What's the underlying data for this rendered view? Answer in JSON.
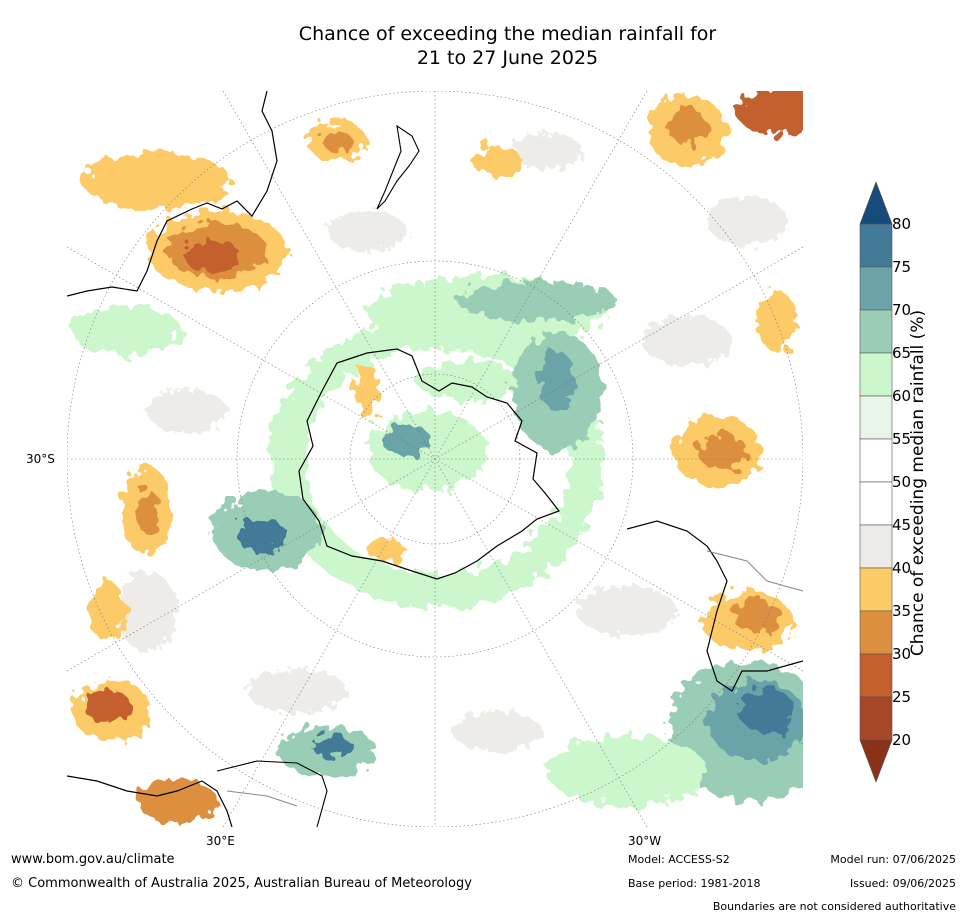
{
  "title": {
    "line1": "Chance of exceeding the median rainfall for",
    "line2": "21 to 27 June 2025"
  },
  "map": {
    "label_left": "30°S",
    "label_bottom_left": "30°E",
    "label_bottom_right": "30°W",
    "projection": "south polar stereographic",
    "land_outline_color": "#000000",
    "boundary_color": "#888888"
  },
  "colorbar": {
    "title": "Chance of exceeding median rainfall (%)",
    "ticks": [
      "80",
      "75",
      "70",
      "65",
      "60",
      "55",
      "50",
      "45",
      "40",
      "35",
      "30",
      "25",
      "20"
    ],
    "bands": [
      {
        "range": "<20",
        "color": "#8a3218"
      },
      {
        "range": "20-25",
        "color": "#a64828"
      },
      {
        "range": "25-30",
        "color": "#c4602e"
      },
      {
        "range": "30-35",
        "color": "#dd8f40"
      },
      {
        "range": "35-40",
        "color": "#fccb67"
      },
      {
        "range": "40-45",
        "color": "#ecebe7"
      },
      {
        "range": "45-50",
        "color": "#ffffff"
      },
      {
        "range": "50-55",
        "color": "#ffffff"
      },
      {
        "range": "55-60",
        "color": "#e9f5e9"
      },
      {
        "range": "60-65",
        "color": "#ccf7cc"
      },
      {
        "range": "65-70",
        "color": "#9acdb5"
      },
      {
        "range": "70-75",
        "color": "#6ba3a8"
      },
      {
        "range": "75-80",
        "color": "#427a97"
      },
      {
        "range": ">80",
        "color": "#164b7c"
      }
    ]
  },
  "footer": {
    "website": "www.bom.gov.au/climate",
    "copyright": "© Commonwealth of Australia 2025, Australian Bureau of Meteorology",
    "model": "Model: ACCESS-S2",
    "base_period": "Base period: 1981-2018",
    "model_run": "Model run: 07/06/2025",
    "issued": "Issued: 09/06/2025",
    "disclaimer": "Boundaries are not considered authoritative"
  }
}
